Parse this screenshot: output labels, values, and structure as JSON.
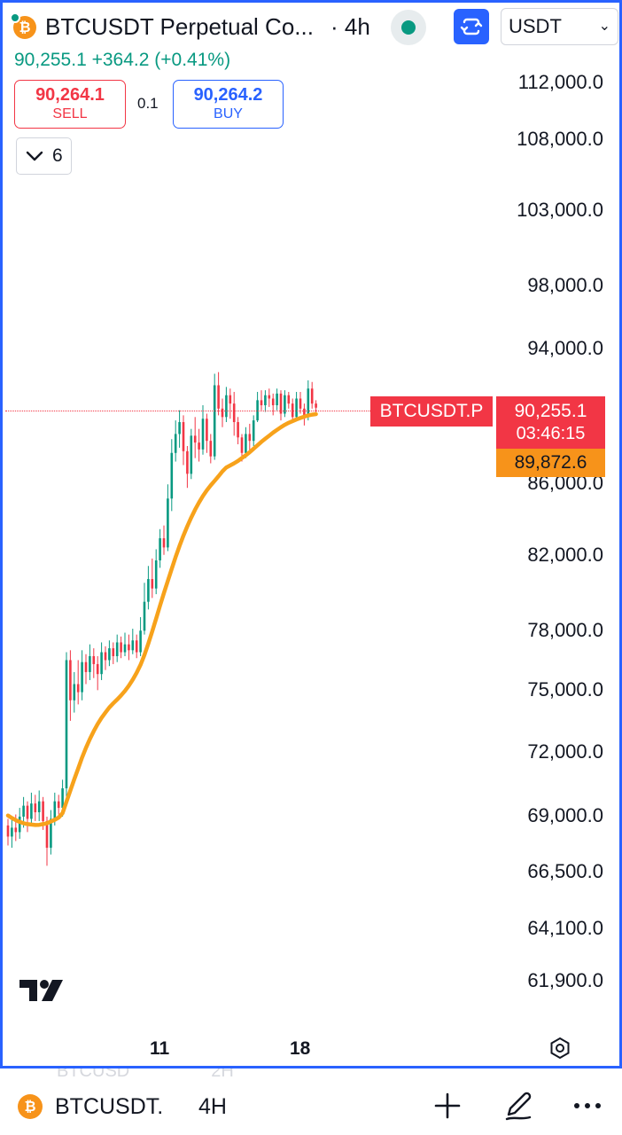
{
  "header": {
    "symbol_title": "BTCUSDT Perpetual Co...",
    "interval": "· 4h",
    "currency": "USDT",
    "coin_glyph": "₿"
  },
  "quote": {
    "last": "90,255.1",
    "change": "+364.2",
    "change_pct": "(+0.41%)"
  },
  "trade": {
    "sell_price": "90,264.1",
    "sell_label": "SELL",
    "spread": "0.1",
    "buy_price": "90,264.2",
    "buy_label": "BUY"
  },
  "indicators": {
    "count": "6"
  },
  "price_axis": [
    "112,000.0",
    "108,000.0",
    "103,000.0",
    "98,000.0",
    "94,000.0",
    "86,000.0",
    "82,000.0",
    "78,000.0",
    "75,000.0",
    "72,000.0",
    "69,000.0",
    "66,500.0",
    "64,100.0",
    "61,900.0"
  ],
  "markers": {
    "symbol_tag": "BTCUSDT.P",
    "last_price": "90,255.1",
    "countdown": "03:46:15",
    "ema_value": "89,872.6"
  },
  "time_axis": [
    "11",
    "18"
  ],
  "colors": {
    "up": "#089981",
    "down": "#f23645",
    "ema": "#f7a21b",
    "accent": "#2962ff"
  },
  "chart_data": {
    "type": "candlestick",
    "scale": "log",
    "ylim": [
      61900,
      112000
    ],
    "series": [
      {
        "name": "",
        "kind": "candles",
        "values": [
          [
            68500,
            68000,
            68800,
            67600
          ],
          [
            68000,
            68400,
            68900,
            67500
          ],
          [
            68400,
            68200,
            69000,
            67800
          ],
          [
            68200,
            68900,
            69300,
            67900
          ],
          [
            68900,
            69400,
            69800,
            68400
          ],
          [
            69400,
            68800,
            69600,
            68200
          ],
          [
            68800,
            69500,
            70000,
            68600
          ],
          [
            69500,
            69100,
            69900,
            68700
          ],
          [
            69100,
            69600,
            70100,
            68700
          ],
          [
            69600,
            68700,
            69800,
            68300
          ],
          [
            68700,
            67500,
            68900,
            66700
          ],
          [
            67500,
            68800,
            69200,
            67200
          ],
          [
            68800,
            69600,
            70000,
            68500
          ],
          [
            69600,
            69300,
            69900,
            69000
          ],
          [
            69300,
            70200,
            70600,
            68900
          ],
          [
            70200,
            76400,
            76800,
            69800
          ],
          [
            76400,
            74400,
            76900,
            73400
          ],
          [
            74400,
            75200,
            75800,
            73800
          ],
          [
            75200,
            74800,
            76400,
            74200
          ],
          [
            74800,
            76300,
            76900,
            74400
          ],
          [
            76300,
            75800,
            76700,
            75200
          ],
          [
            75800,
            76600,
            77200,
            75400
          ],
          [
            76600,
            76200,
            77000,
            75500
          ],
          [
            76200,
            75700,
            76600,
            74900
          ],
          [
            75700,
            76800,
            77300,
            75400
          ],
          [
            76800,
            76400,
            77100,
            75900
          ],
          [
            76400,
            77000,
            77400,
            76100
          ],
          [
            77000,
            76600,
            77300,
            76200
          ],
          [
            76600,
            77300,
            77700,
            76300
          ],
          [
            77300,
            76800,
            77600,
            76500
          ],
          [
            76800,
            77200,
            77800,
            76600
          ],
          [
            77200,
            76900,
            77700,
            76400
          ],
          [
            76900,
            77400,
            78000,
            76700
          ],
          [
            77400,
            76800,
            77700,
            76500
          ],
          [
            76800,
            77900,
            78600,
            76600
          ],
          [
            77900,
            79400,
            80400,
            77700
          ],
          [
            79400,
            80600,
            81300,
            79000
          ],
          [
            80600,
            80100,
            81700,
            79600
          ],
          [
            80100,
            81600,
            82200,
            79800
          ],
          [
            81600,
            82800,
            83300,
            81200
          ],
          [
            82800,
            82300,
            83500,
            81900
          ],
          [
            82300,
            85000,
            85800,
            82100
          ],
          [
            85000,
            87600,
            88400,
            84300
          ],
          [
            87600,
            88700,
            89500,
            87100
          ],
          [
            88700,
            89400,
            90100,
            87900
          ],
          [
            89400,
            87700,
            89800,
            86900
          ],
          [
            87700,
            86400,
            88000,
            85600
          ],
          [
            86400,
            88600,
            89000,
            86100
          ],
          [
            88600,
            88200,
            89700,
            87300
          ],
          [
            88200,
            87800,
            89000,
            87100
          ],
          [
            87800,
            89600,
            90400,
            87500
          ],
          [
            89600,
            88300,
            89900,
            87600
          ],
          [
            88300,
            87400,
            88700,
            87000
          ],
          [
            87400,
            91600,
            92300,
            87200
          ],
          [
            91600,
            90200,
            92400,
            89800
          ],
          [
            90200,
            89700,
            90800,
            89100
          ],
          [
            89700,
            91000,
            91500,
            89400
          ],
          [
            91000,
            90500,
            91400,
            89600
          ],
          [
            90500,
            89400,
            91200,
            88600
          ],
          [
            89400,
            88500,
            89700,
            88100
          ],
          [
            88500,
            87600,
            88700,
            87100
          ],
          [
            87600,
            88700,
            89100,
            87300
          ],
          [
            88700,
            88300,
            89300,
            87700
          ],
          [
            88300,
            89500,
            89800,
            88000
          ],
          [
            89500,
            90700,
            91200,
            89400
          ],
          [
            90700,
            90400,
            91300,
            90100
          ],
          [
            90400,
            91000,
            91300,
            90000
          ],
          [
            91000,
            90800,
            91400,
            90300
          ],
          [
            90800,
            90400,
            91100,
            89800
          ],
          [
            90400,
            91100,
            91400,
            90100
          ],
          [
            91100,
            89900,
            91300,
            89500
          ],
          [
            89900,
            91000,
            91300,
            89700
          ],
          [
            91000,
            90500,
            91200,
            90200
          ],
          [
            90500,
            89700,
            90800,
            89400
          ],
          [
            89700,
            90800,
            91200,
            89500
          ],
          [
            90800,
            90200,
            91200,
            89900
          ],
          [
            90200,
            89700,
            90500,
            89200
          ],
          [
            89700,
            91400,
            91900,
            89500
          ],
          [
            91400,
            90500,
            91800,
            90200
          ],
          [
            90500,
            90255,
            90700,
            90000
          ]
        ]
      },
      {
        "name": "",
        "kind": "ema",
        "values": [
          68950,
          68840,
          68740,
          68660,
          68600,
          68560,
          68540,
          68520,
          68530,
          68560,
          68600,
          68680,
          68760,
          68860,
          69060,
          69580,
          70100,
          70620,
          71120,
          71640,
          72100,
          72520,
          72900,
          73240,
          73540,
          73800,
          74050,
          74250,
          74440,
          74640,
          74860,
          75120,
          75420,
          75760,
          76160,
          76660,
          77240,
          77860,
          78520,
          79200,
          79860,
          80500,
          81140,
          81780,
          82380,
          82940,
          83460,
          83940,
          84380,
          84780,
          85140,
          85460,
          85740,
          86000,
          86260,
          86540,
          86760,
          86880,
          87000,
          87140,
          87300,
          87460,
          87640,
          87840,
          88040,
          88240,
          88420,
          88600,
          88780,
          88940,
          89100,
          89240,
          89360,
          89460,
          89560,
          89640,
          89720,
          89790,
          89840,
          89872.6
        ]
      }
    ]
  }
}
